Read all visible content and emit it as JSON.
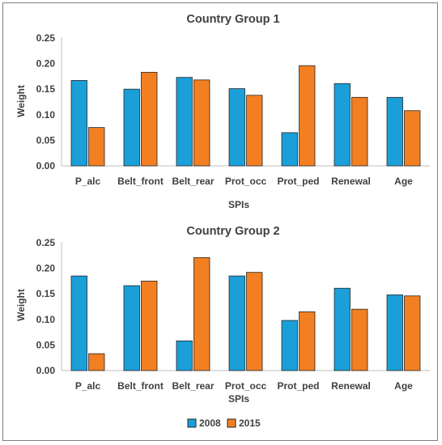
{
  "colors": {
    "s2008": "#1A9FD9",
    "s2015": "#F27F22",
    "axis": "#BFBFBF",
    "text": "#404040"
  },
  "legend": {
    "items": [
      "2008",
      "2015"
    ],
    "placement": "bottom-center"
  },
  "chart_data": [
    {
      "type": "bar",
      "title": "Country Group 1",
      "xlabel": "SPIs",
      "ylabel": "Weight",
      "ylim": [
        0,
        0.25
      ],
      "yticks": [
        "0.00",
        "0.05",
        "0.10",
        "0.15",
        "0.20",
        "0.25"
      ],
      "grid": false,
      "categories": [
        "P_alc",
        "Belt_front",
        "Belt_rear",
        "Prot_occ",
        "Prot_ped",
        "Renewal",
        "Age"
      ],
      "series": [
        {
          "name": "2008",
          "values": [
            0.167,
            0.15,
            0.173,
            0.151,
            0.065,
            0.161,
            0.134
          ]
        },
        {
          "name": "2015",
          "values": [
            0.075,
            0.183,
            0.168,
            0.138,
            0.196,
            0.134,
            0.108
          ]
        }
      ]
    },
    {
      "type": "bar",
      "title": "Country Group 2",
      "xlabel": "SPIs",
      "ylabel": "Weight",
      "ylim": [
        0,
        0.25
      ],
      "yticks": [
        "0.00",
        "0.05",
        "0.10",
        "0.15",
        "0.20",
        "0.25"
      ],
      "grid": false,
      "categories": [
        "P_alc",
        "Belt_front",
        "Belt_rear",
        "Prot_occ",
        "Prot_ped",
        "Renewal",
        "Age"
      ],
      "series": [
        {
          "name": "2008",
          "values": [
            0.185,
            0.166,
            0.058,
            0.185,
            0.098,
            0.161,
            0.148
          ]
        },
        {
          "name": "2015",
          "values": [
            0.033,
            0.175,
            0.221,
            0.192,
            0.115,
            0.12,
            0.146
          ]
        }
      ]
    }
  ]
}
